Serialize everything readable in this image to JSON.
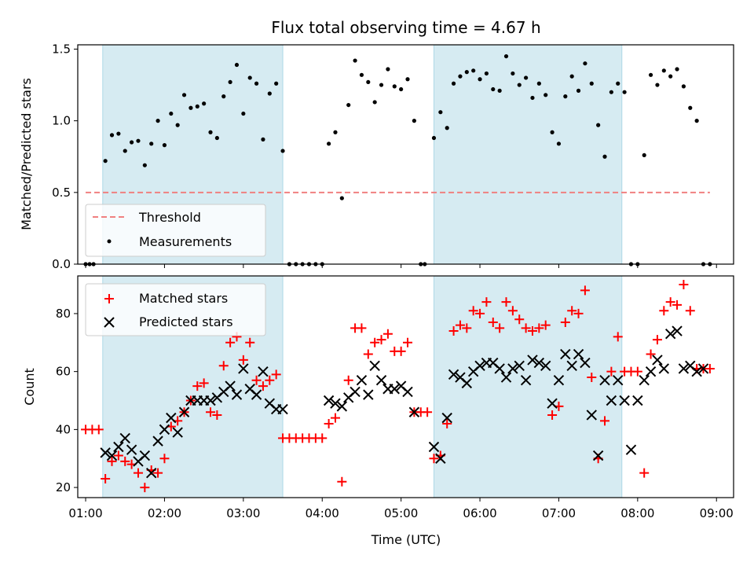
{
  "chart_data": [
    {
      "type": "scatter",
      "title": "Flux total observing time = 4.67 h",
      "xlabel": "",
      "ylabel": "Matched/Predicted stars",
      "xlim": [
        "00:54",
        "09:13"
      ],
      "ylim": [
        0,
        1.53
      ],
      "yticks": [
        "0.0",
        "0.5",
        "1.0",
        "1.5"
      ],
      "legend": {
        "placement": "lower-left",
        "entries": [
          "Threshold",
          "Measurements"
        ]
      },
      "shaded_intervals": [
        [
          "01:13",
          "03:30"
        ],
        [
          "05:25",
          "07:48"
        ]
      ],
      "threshold": {
        "name": "Threshold",
        "value": 0.5,
        "x_from": "01:00",
        "x_to": "08:55",
        "color": "#f08080"
      },
      "series": [
        {
          "name": "Measurements",
          "color": "#000000",
          "x": [
            "01:00",
            "01:03",
            "01:06",
            "01:15",
            "01:20",
            "01:25",
            "01:30",
            "01:35",
            "01:40",
            "01:45",
            "01:50",
            "01:55",
            "02:00",
            "02:05",
            "02:10",
            "02:15",
            "02:20",
            "02:25",
            "02:30",
            "02:35",
            "02:40",
            "02:45",
            "02:50",
            "02:55",
            "03:00",
            "03:05",
            "03:10",
            "03:15",
            "03:20",
            "03:25",
            "03:30",
            "03:35",
            "03:40",
            "03:45",
            "03:50",
            "03:55",
            "04:00",
            "04:05",
            "04:10",
            "04:15",
            "04:20",
            "04:25",
            "04:30",
            "04:35",
            "04:40",
            "04:45",
            "04:50",
            "04:55",
            "05:00",
            "05:05",
            "05:10",
            "05:15",
            "05:18",
            "05:25",
            "05:30",
            "05:35",
            "05:40",
            "05:45",
            "05:50",
            "05:55",
            "06:00",
            "06:05",
            "06:10",
            "06:15",
            "06:20",
            "06:25",
            "06:30",
            "06:35",
            "06:40",
            "06:45",
            "06:50",
            "06:55",
            "07:00",
            "07:05",
            "07:10",
            "07:15",
            "07:20",
            "07:25",
            "07:30",
            "07:35",
            "07:40",
            "07:45",
            "07:50",
            "07:55",
            "08:00",
            "08:05",
            "08:10",
            "08:15",
            "08:20",
            "08:25",
            "08:30",
            "08:35",
            "08:40",
            "08:45",
            "08:50",
            "08:55"
          ],
          "y": [
            0,
            0,
            0,
            0.72,
            0.9,
            0.91,
            0.79,
            0.85,
            0.86,
            0.69,
            0.84,
            1.0,
            0.83,
            1.05,
            0.97,
            1.18,
            1.09,
            1.1,
            1.12,
            0.92,
            0.88,
            1.17,
            1.27,
            1.39,
            1.05,
            1.3,
            1.26,
            0.87,
            1.19,
            1.26,
            0.79,
            0,
            0,
            0,
            0,
            0,
            0,
            0.84,
            0.92,
            0.46,
            1.11,
            1.42,
            1.32,
            1.27,
            1.13,
            1.25,
            1.36,
            1.24,
            1.22,
            1.29,
            1.0,
            0,
            0,
            0.88,
            1.06,
            0.95,
            1.26,
            1.31,
            1.34,
            1.35,
            1.29,
            1.33,
            1.22,
            1.21,
            1.45,
            1.33,
            1.25,
            1.3,
            1.16,
            1.26,
            1.18,
            0.92,
            0.84,
            1.17,
            1.31,
            1.21,
            1.4,
            1.26,
            0.97,
            0.75,
            1.2,
            1.26,
            1.2,
            0,
            0,
            0.76,
            1.32,
            1.25,
            1.35,
            1.31,
            1.36,
            1.24,
            1.09,
            1.0,
            0,
            0
          ]
        }
      ]
    },
    {
      "type": "scatter",
      "title": "",
      "xlabel": "Time (UTC)",
      "ylabel": "Count",
      "xlim": [
        "00:54",
        "09:13"
      ],
      "ylim": [
        16.5,
        93
      ],
      "yticks": [
        "20",
        "40",
        "60",
        "80"
      ],
      "xticks": [
        "01:00",
        "02:00",
        "03:00",
        "04:00",
        "05:00",
        "06:00",
        "07:00",
        "08:00",
        "09:00"
      ],
      "legend": {
        "placement": "upper-left",
        "entries": [
          "Matched stars",
          "Predicted stars"
        ]
      },
      "shaded_intervals": [
        [
          "01:13",
          "03:30"
        ],
        [
          "05:25",
          "07:48"
        ]
      ],
      "series": [
        {
          "name": "Matched stars",
          "marker": "+",
          "color": "#ff0000",
          "x": [
            "01:00",
            "01:05",
            "01:10",
            "01:15",
            "01:20",
            "01:25",
            "01:30",
            "01:35",
            "01:40",
            "01:45",
            "01:50",
            "01:55",
            "02:00",
            "02:05",
            "02:10",
            "02:15",
            "02:20",
            "02:25",
            "02:30",
            "02:35",
            "02:40",
            "02:45",
            "02:50",
            "02:55",
            "03:00",
            "03:05",
            "03:10",
            "03:15",
            "03:20",
            "03:25",
            "03:30",
            "03:35",
            "03:40",
            "03:45",
            "03:50",
            "03:55",
            "04:00",
            "04:05",
            "04:10",
            "04:15",
            "04:20",
            "04:25",
            "04:30",
            "04:35",
            "04:40",
            "04:45",
            "04:50",
            "04:55",
            "05:00",
            "05:05",
            "05:10",
            "05:15",
            "05:20",
            "05:25",
            "05:30",
            "05:35",
            "05:40",
            "05:45",
            "05:50",
            "05:55",
            "06:00",
            "06:05",
            "06:10",
            "06:15",
            "06:20",
            "06:25",
            "06:30",
            "06:35",
            "06:40",
            "06:45",
            "06:50",
            "06:55",
            "07:00",
            "07:05",
            "07:10",
            "07:15",
            "07:20",
            "07:25",
            "07:30",
            "07:35",
            "07:40",
            "07:45",
            "07:50",
            "07:55",
            "08:00",
            "08:05",
            "08:10",
            "08:15",
            "08:20",
            "08:25",
            "08:30",
            "08:35",
            "08:40",
            "08:45",
            "08:50",
            "08:55"
          ],
          "y": [
            40,
            40,
            40,
            23,
            29,
            31,
            29,
            28,
            25,
            20,
            26,
            25,
            30,
            41,
            43,
            46,
            50,
            55,
            56,
            46,
            45,
            62,
            70,
            72,
            64,
            70,
            57,
            55,
            57,
            59,
            37,
            37,
            37,
            37,
            37,
            37,
            37,
            42,
            44,
            22,
            57,
            75,
            75,
            66,
            70,
            71,
            73,
            67,
            67,
            70,
            46,
            46,
            46,
            30,
            31,
            42,
            74,
            76,
            75,
            81,
            80,
            84,
            77,
            75,
            84,
            81,
            78,
            75,
            74,
            75,
            76,
            45,
            48,
            77,
            81,
            80,
            88,
            58,
            30,
            43,
            60,
            72,
            60,
            60,
            60,
            25,
            66,
            71,
            81,
            84,
            83,
            90,
            81,
            61,
            61,
            61
          ]
        },
        {
          "name": "Predicted stars",
          "marker": "x",
          "color": "#000000",
          "x": [
            "01:15",
            "01:20",
            "01:25",
            "01:30",
            "01:35",
            "01:40",
            "01:45",
            "01:50",
            "01:55",
            "02:00",
            "02:05",
            "02:10",
            "02:15",
            "02:20",
            "02:25",
            "02:30",
            "02:35",
            "02:40",
            "02:45",
            "02:50",
            "02:55",
            "03:00",
            "03:05",
            "03:10",
            "03:15",
            "03:20",
            "03:25",
            "03:30",
            "04:05",
            "04:10",
            "04:15",
            "04:20",
            "04:25",
            "04:30",
            "04:35",
            "04:40",
            "04:45",
            "04:50",
            "04:55",
            "05:00",
            "05:05",
            "05:10",
            "05:25",
            "05:30",
            "05:35",
            "05:40",
            "05:45",
            "05:50",
            "05:55",
            "06:00",
            "06:05",
            "06:10",
            "06:15",
            "06:20",
            "06:25",
            "06:30",
            "06:35",
            "06:40",
            "06:45",
            "06:50",
            "06:55",
            "07:00",
            "07:05",
            "07:10",
            "07:15",
            "07:20",
            "07:25",
            "07:30",
            "07:35",
            "07:40",
            "07:45",
            "07:50",
            "07:55",
            "08:00",
            "08:05",
            "08:10",
            "08:15",
            "08:20",
            "08:25",
            "08:30",
            "08:35",
            "08:40",
            "08:45",
            "08:50"
          ],
          "y": [
            32,
            31,
            34,
            37,
            33,
            29,
            31,
            25,
            36,
            40,
            44,
            39,
            46,
            50,
            50,
            50,
            50,
            51,
            53,
            55,
            52,
            61,
            54,
            52,
            60,
            49,
            47,
            47,
            50,
            49,
            48,
            51,
            53,
            57,
            52,
            62,
            57,
            54,
            54,
            55,
            53,
            46,
            34,
            30,
            44,
            59,
            58,
            56,
            60,
            62,
            63,
            63,
            61,
            58,
            61,
            62,
            57,
            64,
            63,
            62,
            49,
            57,
            66,
            62,
            66,
            63,
            45,
            31,
            57,
            50,
            57,
            50,
            33,
            50,
            57,
            60,
            64,
            61,
            73,
            74,
            61,
            62,
            60,
            61
          ]
        }
      ]
    }
  ]
}
